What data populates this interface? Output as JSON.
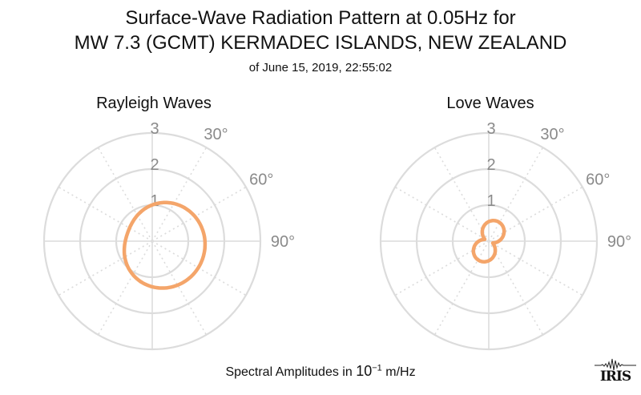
{
  "header": {
    "title_line1": "Surface-Wave Radiation Pattern at 0.05Hz for",
    "title_line2": "MW 7.3 (GCMT) KERMADEC ISLANDS, NEW ZEALAND",
    "subtitle": "of June 15, 2019, 22:55:02"
  },
  "footer": {
    "label_prefix": "Spectral Amplitudes in",
    "base": "10",
    "exponent": "−1",
    "unit": "m/Hz"
  },
  "logo": {
    "text": "IRIS"
  },
  "colors": {
    "pattern": "#f4a56a",
    "grid": "#dcdcdc",
    "labels": "#8a8a8a"
  },
  "chart_data": [
    {
      "type": "polar",
      "title": "Rayleigh Waves",
      "r_ticks": [
        "1",
        "2",
        "3"
      ],
      "rlim": [
        0,
        3
      ],
      "angle_labels": [
        "30°",
        "60°",
        "90°"
      ],
      "pattern": {
        "shape": "two-lobed",
        "max_amplitude": 1.5,
        "max_azimuth_deg": 110,
        "min_amplitude": 0.7,
        "min_azimuth_deg": 40
      }
    },
    {
      "type": "polar",
      "title": "Love Waves",
      "r_ticks": [
        "1",
        "2",
        "3"
      ],
      "rlim": [
        0,
        3
      ],
      "angle_labels": [
        "30°",
        "60°",
        "90°"
      ],
      "pattern": {
        "shape": "four-lobed",
        "max_amplitude": 0.6,
        "lobe_azimuths_deg": [
          25,
          110,
          205,
          290
        ],
        "min_amplitude": 0.12
      }
    }
  ]
}
